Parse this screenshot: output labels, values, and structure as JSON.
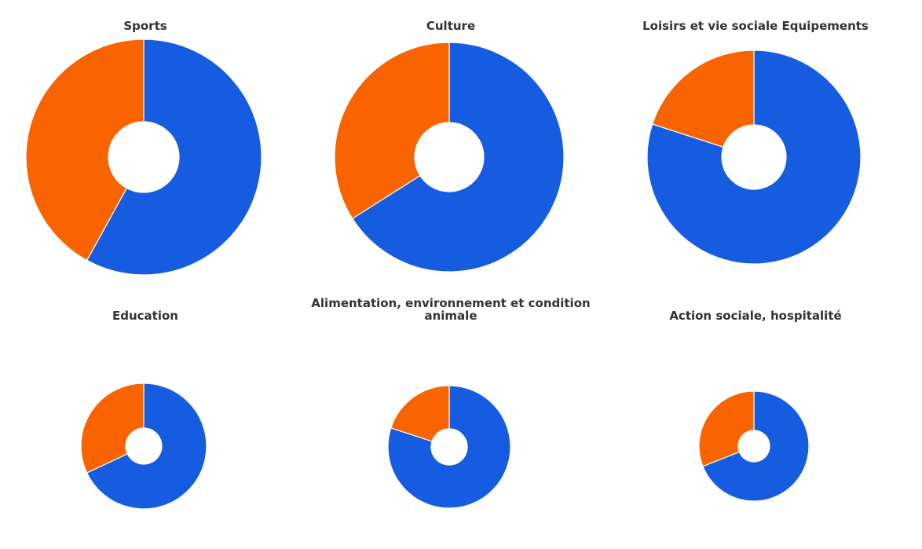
{
  "chart_data": [
    {
      "type": "pie",
      "title": "Sports",
      "values": [
        58,
        42
      ],
      "colors": [
        "#165ce0",
        "#fa6400"
      ]
    },
    {
      "type": "pie",
      "title": "Culture",
      "values": [
        66,
        34
      ],
      "colors": [
        "#165ce0",
        "#fa6400"
      ]
    },
    {
      "type": "pie",
      "title": "Loisirs et vie sociale Equipements",
      "values": [
        80,
        20
      ],
      "colors": [
        "#165ce0",
        "#fa6400"
      ]
    },
    {
      "type": "pie",
      "title": "Education",
      "values": [
        68,
        32
      ],
      "colors": [
        "#165ce0",
        "#fa6400"
      ]
    },
    {
      "type": "pie",
      "title": "Alimentation, environnement et condition animale",
      "values": [
        80,
        20
      ],
      "colors": [
        "#165ce0",
        "#fa6400"
      ]
    },
    {
      "type": "pie",
      "title": "Action sociale, hospitalité",
      "values": [
        69,
        31
      ],
      "colors": [
        "#165ce0",
        "#fa6400"
      ]
    }
  ]
}
